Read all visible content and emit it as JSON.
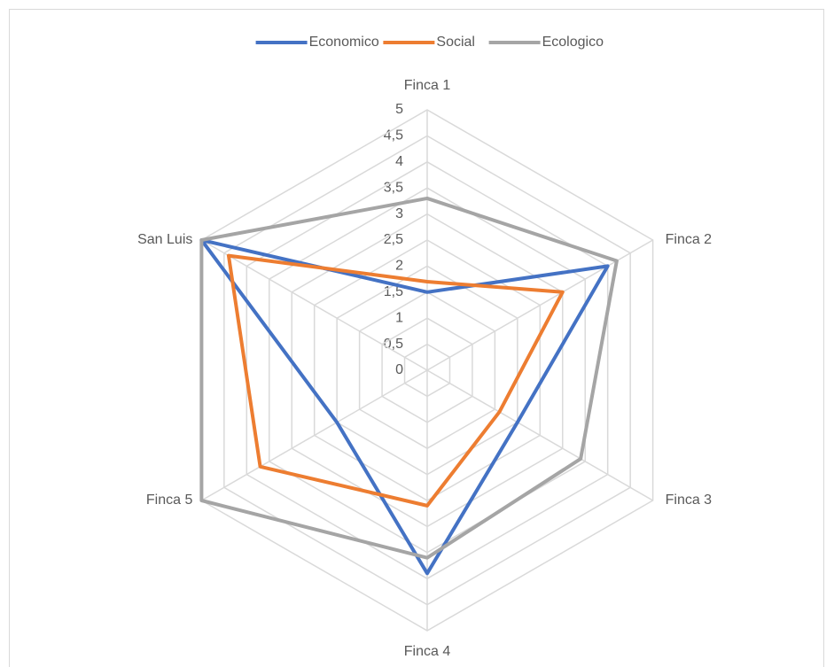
{
  "chart_data": {
    "type": "radar",
    "categories": [
      "Finca 1",
      "Finca 2",
      "Finca 3",
      "Finca 4",
      "Finca 5",
      "San Luis"
    ],
    "series": [
      {
        "name": "Economico",
        "color": "#4472c4",
        "values": [
          1.5,
          4,
          2,
          3.9,
          2,
          5
        ]
      },
      {
        "name": "Social",
        "color": "#ed7d31",
        "values": [
          1.7,
          3,
          1.6,
          2.6,
          3.7,
          4.4
        ]
      },
      {
        "name": "Ecologico",
        "color": "#a5a5a5",
        "values": [
          3.3,
          4.2,
          3.4,
          3.6,
          5,
          5
        ]
      }
    ],
    "ylim": [
      0,
      5
    ],
    "yticks": [
      0,
      {
        "value": 0.5,
        "label": "0,5"
      },
      1,
      {
        "value": 1.5,
        "label": "1,5"
      },
      2,
      {
        "value": 2.5,
        "label": "2,5"
      },
      3,
      {
        "value": 3.5,
        "label": "3,5"
      },
      4,
      {
        "value": 4.5,
        "label": "4,5"
      },
      5
    ],
    "grid": true,
    "legend": "top"
  }
}
